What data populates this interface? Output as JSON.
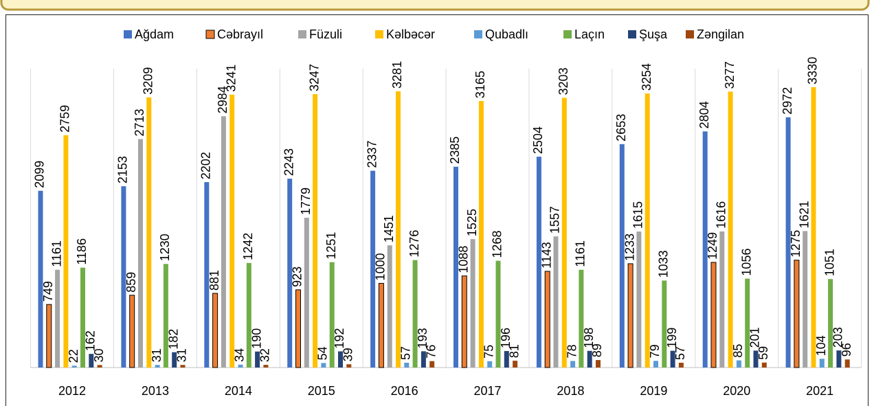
{
  "chart_data": {
    "type": "bar",
    "categories": [
      "2012",
      "2013",
      "2014",
      "2015",
      "2016",
      "2017",
      "2018",
      "2019",
      "2020",
      "2021"
    ],
    "series": [
      {
        "name": "Ağdam",
        "color": "#4472c4",
        "values": [
          2099,
          2153,
          2202,
          2243,
          2337,
          2385,
          2504,
          2653,
          2804,
          2972
        ]
      },
      {
        "name": "Cəbrayıl",
        "color": "#ed7d31",
        "values": [
          749,
          859,
          881,
          923,
          1000,
          1088,
          1143,
          1233,
          1249,
          1275
        ]
      },
      {
        "name": "Füzuli",
        "color": "#a5a5a5",
        "values": [
          1161,
          2713,
          2984,
          1779,
          1451,
          1525,
          1557,
          1615,
          1616,
          1621
        ]
      },
      {
        "name": "Kəlbəcər",
        "color": "#ffc000",
        "values": [
          2759,
          3209,
          3241,
          3247,
          3281,
          3165,
          3203,
          3254,
          3277,
          3330
        ]
      },
      {
        "name": "Qubadlı",
        "color": "#5b9bd5",
        "values": [
          22,
          31,
          34,
          54,
          57,
          75,
          78,
          79,
          85,
          104
        ]
      },
      {
        "name": "Laçın",
        "color": "#70ad47",
        "values": [
          1186,
          1230,
          1242,
          1251,
          1276,
          1268,
          1161,
          1033,
          1056,
          1051
        ]
      },
      {
        "name": "Şuşa",
        "color": "#264478",
        "values": [
          162,
          182,
          190,
          192,
          193,
          196,
          198,
          199,
          201,
          203
        ]
      },
      {
        "name": "Zəngilan",
        "color": "#9e480e",
        "values": [
          30,
          31,
          32,
          39,
          76,
          81,
          89,
          57,
          59,
          96
        ]
      }
    ],
    "ylim": [
      0,
      3500
    ],
    "grid": true,
    "legend": "top"
  }
}
